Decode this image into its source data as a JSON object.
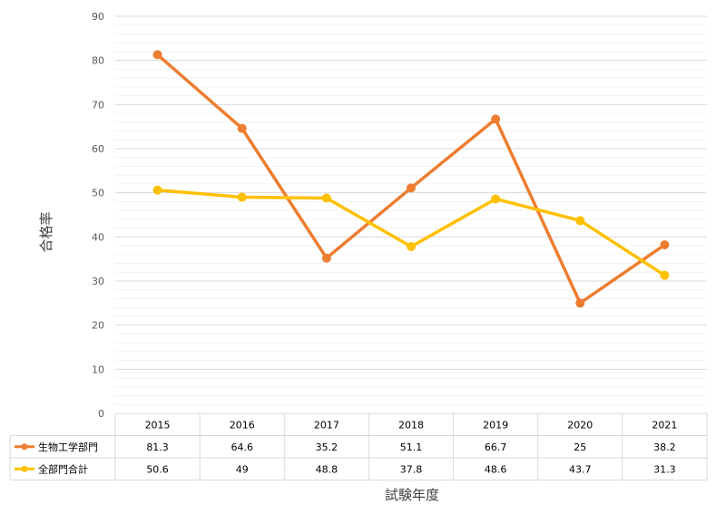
{
  "chart_data": {
    "type": "line",
    "title": "",
    "xlabel": "試験年度",
    "ylabel": "合格率",
    "ylim": [
      0,
      90
    ],
    "yticks": [
      0,
      10,
      20,
      30,
      40,
      50,
      60,
      70,
      80,
      90
    ],
    "minor_gridlines_step": 2,
    "grid": true,
    "legend": "data-table-left",
    "categories": [
      "2015",
      "2016",
      "2017",
      "2018",
      "2019",
      "2020",
      "2021"
    ],
    "series": [
      {
        "name": "生物工学部門",
        "color": "#ED7D31",
        "values": [
          81.3,
          64.6,
          35.2,
          51.1,
          66.7,
          25,
          38.2
        ],
        "labels": [
          "81.3",
          "64.6",
          "35.2",
          "51.1",
          "66.7",
          "25",
          "38.2"
        ]
      },
      {
        "name": "全部門合計",
        "color": "#FFC000",
        "values": [
          50.6,
          49,
          48.8,
          37.8,
          48.6,
          43.7,
          31.3
        ],
        "labels": [
          "50.6",
          "49",
          "48.8",
          "37.8",
          "48.6",
          "43.7",
          "31.3"
        ]
      }
    ]
  }
}
